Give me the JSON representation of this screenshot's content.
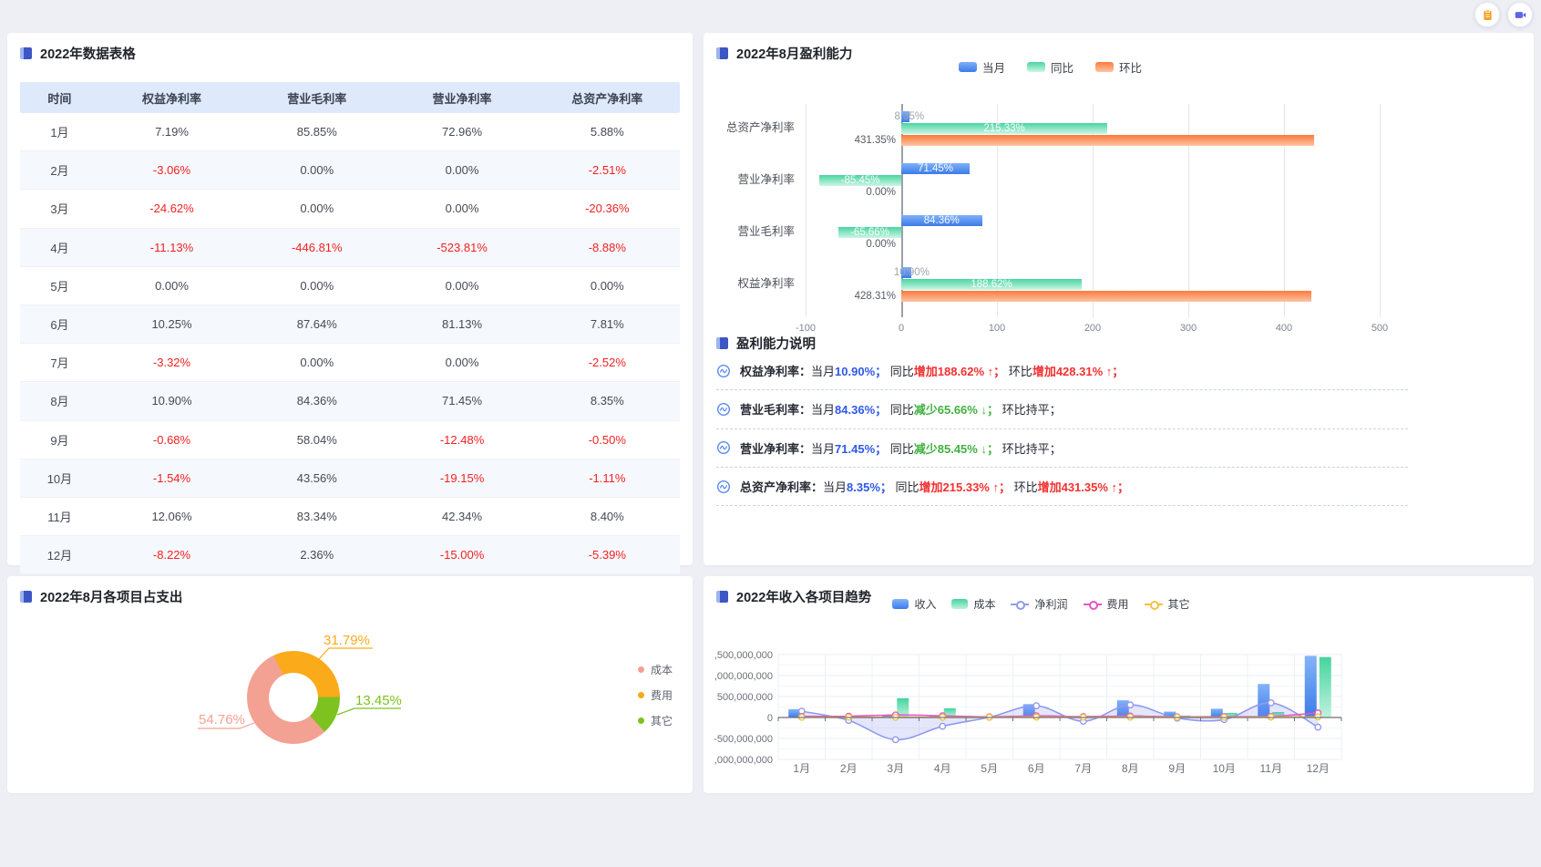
{
  "toolbar": {
    "buttons": [
      {
        "icon": "clipboard-icon",
        "color": "#F79B18"
      },
      {
        "icon": "video-icon",
        "color": "#6064E3"
      }
    ]
  },
  "data_table": {
    "title": "2022年数据表格",
    "columns": [
      "时间",
      "权益净利率",
      "营业毛利率",
      "营业净利率",
      "总资产净利率"
    ],
    "rows": [
      [
        "1月",
        "7.19%",
        "85.85%",
        "72.96%",
        "5.88%"
      ],
      [
        "2月",
        "-3.06%",
        "0.00%",
        "0.00%",
        "-2.51%"
      ],
      [
        "3月",
        "-24.62%",
        "0.00%",
        "0.00%",
        "-20.36%"
      ],
      [
        "4月",
        "-11.13%",
        "-446.81%",
        "-523.81%",
        "-8.88%"
      ],
      [
        "5月",
        "0.00%",
        "0.00%",
        "0.00%",
        "0.00%"
      ],
      [
        "6月",
        "10.25%",
        "87.64%",
        "81.13%",
        "7.81%"
      ],
      [
        "7月",
        "-3.32%",
        "0.00%",
        "0.00%",
        "-2.52%"
      ],
      [
        "8月",
        "10.90%",
        "84.36%",
        "71.45%",
        "8.35%"
      ],
      [
        "9月",
        "-0.68%",
        "58.04%",
        "-12.48%",
        "-0.50%"
      ],
      [
        "10月",
        "-1.54%",
        "43.56%",
        "-19.15%",
        "-1.11%"
      ],
      [
        "11月",
        "12.06%",
        "83.34%",
        "42.34%",
        "8.40%"
      ],
      [
        "12月",
        "-8.22%",
        "2.36%",
        "-15.00%",
        "-5.39%"
      ]
    ],
    "negative_color": "#f32121"
  },
  "explain": {
    "title": "盈利能力说明",
    "items": [
      {
        "segs": [
          [
            "权益净利率：",
            "n"
          ],
          [
            "当月",
            "p"
          ],
          [
            "10.90%；",
            "b"
          ],
          [
            " 同比",
            "p"
          ],
          [
            "增加188.62% ↑；",
            "r"
          ],
          [
            " 环比",
            "p"
          ],
          [
            "增加428.31% ↑；",
            "r"
          ]
        ]
      },
      {
        "segs": [
          [
            "营业毛利率：",
            "n"
          ],
          [
            "当月",
            "p"
          ],
          [
            "84.36%；",
            "b"
          ],
          [
            " 同比",
            "p"
          ],
          [
            "减少65.66% ↓；",
            "g"
          ],
          [
            " 环比持平；",
            "p"
          ]
        ]
      },
      {
        "segs": [
          [
            "营业净利率：",
            "n"
          ],
          [
            "当月",
            "p"
          ],
          [
            "71.45%；",
            "b"
          ],
          [
            " 同比",
            "p"
          ],
          [
            "减少85.45% ↓；",
            "g"
          ],
          [
            " 环比持平；",
            "p"
          ]
        ]
      },
      {
        "segs": [
          [
            "总资产净利率：",
            "n"
          ],
          [
            "当月",
            "p"
          ],
          [
            "8.35%；",
            "b"
          ],
          [
            " 同比",
            "p"
          ],
          [
            "增加215.33% ↑；",
            "r"
          ],
          [
            " 环比",
            "p"
          ],
          [
            "增加431.35% ↑；",
            "r"
          ]
        ]
      }
    ]
  },
  "chart_data": [
    {
      "id": "profitability",
      "type": "bar",
      "orientation": "horizontal",
      "title": "2022年8月盈利能力",
      "categories": [
        "总资产净利率",
        "营业净利率",
        "营业毛利率",
        "权益净利率"
      ],
      "series": [
        {
          "name": "当月",
          "values": [
            8.35,
            71.45,
            84.36,
            10.9
          ],
          "labels": [
            "8.35%",
            "71.45%",
            "84.36%",
            "10.90%"
          ],
          "color_top": "#7fb0f8",
          "color_bottom": "#3c7ce9"
        },
        {
          "name": "同比",
          "values": [
            215.33,
            -85.45,
            -65.66,
            188.62
          ],
          "labels": [
            "215.33%",
            "-85.45%",
            "-65.66%",
            "188.62%"
          ],
          "color_top": "#49d5a0",
          "color_bottom": "#cdf5e6"
        },
        {
          "name": "环比",
          "values": [
            431.35,
            0,
            0,
            428.31
          ],
          "labels": [
            "431.35%",
            "0.00%",
            "0.00%",
            "428.31%"
          ],
          "color_top": "#fa7b3b",
          "color_bottom": "#fdc4a4"
        }
      ],
      "x_ticks": [
        "-100",
        "0",
        "100",
        "200",
        "300",
        "400",
        "500"
      ],
      "xlim": [
        -100,
        500
      ],
      "grid": true,
      "legend_position": "top"
    },
    {
      "id": "expense-share",
      "type": "pie",
      "title": "2022年8月各项目占支出",
      "donut": true,
      "start_angle_deg": 335,
      "items": [
        {
          "name": "成本",
          "value": 54.76,
          "label": "54.76%",
          "color": "#f3a193"
        },
        {
          "name": "费用",
          "value": 31.79,
          "label": "31.79%",
          "color": "#fbaa1a"
        },
        {
          "name": "其它",
          "value": 13.45,
          "label": "13.45%",
          "color": "#7dc21e"
        }
      ],
      "legend_position": "right"
    },
    {
      "id": "income-trend",
      "type": "combo",
      "title": "2022年收入各项目趋势",
      "categories": [
        "1月",
        "2月",
        "3月",
        "4月",
        "5月",
        "6月",
        "7月",
        "8月",
        "9月",
        "10月",
        "11月",
        "12月"
      ],
      "y_tick_labels": [
        ",500,000,000",
        ",000,000,000",
        "500,000,000",
        "0",
        "-500,000,000",
        ",000,000,000"
      ],
      "y_tick_values_millions": [
        1500,
        1000,
        500,
        0,
        -500,
        -1000
      ],
      "bar_series": [
        {
          "name": "收入",
          "values_millions": [
            200,
            30,
            60,
            30,
            10,
            320,
            15,
            410,
            140,
            210,
            800,
            1470
          ],
          "color_top": "#83b4f8",
          "color_bottom": "#3c7ce9"
        },
        {
          "name": "成本",
          "values_millions": [
            25,
            45,
            460,
            220,
            10,
            35,
            40,
            55,
            45,
            110,
            130,
            1440
          ],
          "color_top": "#45d49e",
          "color_bottom": "#bff2dd"
        }
      ],
      "line_series": [
        {
          "name": "净利润",
          "values_millions": [
            150,
            -70,
            -530,
            -210,
            5,
            280,
            -90,
            300,
            -15,
            -50,
            350,
            -230
          ],
          "color": "#909af0",
          "area": true
        },
        {
          "name": "费用",
          "values_millions": [
            25,
            30,
            60,
            40,
            15,
            40,
            20,
            35,
            15,
            20,
            25,
            110
          ],
          "color": "#e557c1",
          "area": false
        },
        {
          "name": "其它",
          "values_millions": [
            5,
            5,
            5,
            5,
            5,
            10,
            5,
            10,
            5,
            5,
            10,
            15
          ],
          "color": "#f5c040",
          "area": false
        }
      ],
      "grid": true,
      "legend_position": "top"
    }
  ]
}
